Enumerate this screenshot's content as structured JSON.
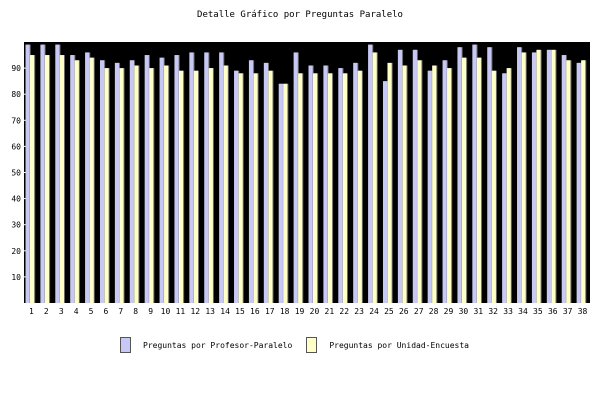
{
  "colors": {
    "background": "#000000",
    "series_profesor": "#c8c8f4",
    "series_unidad": "#ffffc8",
    "bar_shadow": "#6a6a6a",
    "tick_line": "#ffffff"
  },
  "legend": {
    "items": [
      {
        "label": "Preguntas por Profesor-Paralelo"
      },
      {
        "label": "Preguntas por Unidad-Encuesta"
      }
    ]
  },
  "chart_data": {
    "type": "bar",
    "title": "Detalle Gráfico por Preguntas Paralelo",
    "xlabel": "",
    "ylabel": "",
    "ylim": [
      0,
      100
    ],
    "yticks": [
      10,
      20,
      30,
      40,
      50,
      60,
      70,
      80,
      90
    ],
    "grid": false,
    "legend_position": "bottom",
    "categories": [
      "1",
      "2",
      "3",
      "4",
      "5",
      "6",
      "7",
      "8",
      "9",
      "10",
      "11",
      "12",
      "13",
      "14",
      "15",
      "16",
      "17",
      "18",
      "19",
      "20",
      "21",
      "22",
      "23",
      "24",
      "25",
      "26",
      "27",
      "28",
      "29",
      "30",
      "31",
      "32",
      "33",
      "34",
      "35",
      "36",
      "37",
      "38"
    ],
    "series": [
      {
        "name": "Preguntas por Profesor-Paralelo",
        "values": [
          99,
          99,
          99,
          95,
          96,
          93,
          92,
          93,
          95,
          94,
          95,
          96,
          96,
          96,
          89,
          93,
          92,
          84,
          96,
          91,
          91,
          90,
          92,
          99,
          85,
          97,
          97,
          89,
          93,
          98,
          99,
          98,
          88,
          98,
          96,
          97,
          95,
          92
        ]
      },
      {
        "name": "Preguntas por Unidad-Encuesta",
        "values": [
          95,
          95,
          95,
          93,
          94,
          90,
          90,
          91,
          90,
          91,
          89,
          89,
          90,
          91,
          88,
          88,
          89,
          84,
          88,
          88,
          88,
          88,
          89,
          96,
          92,
          91,
          93,
          91,
          90,
          94,
          94,
          89,
          90,
          96,
          97,
          97,
          93,
          93
        ]
      }
    ]
  }
}
